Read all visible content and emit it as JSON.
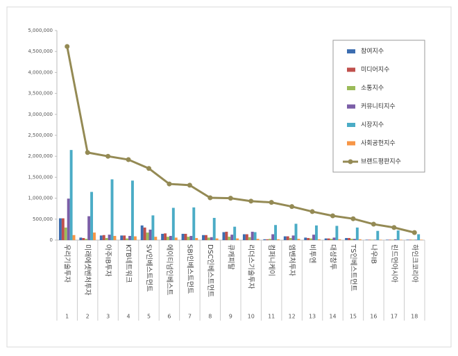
{
  "chart_data": {
    "type": "bar",
    "categories": [
      "우리기술투자",
      "미래에셋벤처투자",
      "아주IB투자",
      "KTB네트워크",
      "SV인베스트먼트",
      "에이티넘인베스트",
      "SBI인베스트먼트",
      "DSC인베스트먼트",
      "큐캐피탈",
      "리더스기술투자",
      "컴퍼니케이",
      "엠벤처투자",
      "비투엔",
      "대성창투",
      "TS인베스트먼트",
      "나우IB",
      "린드먼아시아",
      "하인크코리아"
    ],
    "category_numbers": [
      1,
      2,
      3,
      4,
      5,
      6,
      7,
      8,
      9,
      10,
      11,
      12,
      13,
      14,
      15,
      16,
      17,
      18
    ],
    "series": [
      {
        "name": "참여지수",
        "color": "#3c6db0",
        "values": [
          520000,
          60000,
          110000,
          110000,
          350000,
          150000,
          150000,
          120000,
          190000,
          140000,
          20000,
          90000,
          60000,
          40000,
          50000,
          10000,
          10000,
          10000
        ]
      },
      {
        "name": "미디어지수",
        "color": "#c0504d",
        "values": [
          520000,
          50000,
          120000,
          110000,
          300000,
          160000,
          150000,
          120000,
          200000,
          140000,
          20000,
          90000,
          50000,
          40000,
          50000,
          10000,
          10000,
          10000
        ]
      },
      {
        "name": "소통지수",
        "color": "#9bbb59",
        "values": [
          300000,
          30000,
          50000,
          40000,
          180000,
          80000,
          80000,
          60000,
          80000,
          70000,
          30000,
          50000,
          40000,
          30000,
          30000,
          10000,
          10000,
          10000
        ]
      },
      {
        "name": "커뮤니티지수",
        "color": "#7b5ea7",
        "values": [
          990000,
          570000,
          130000,
          100000,
          250000,
          100000,
          100000,
          70000,
          130000,
          200000,
          140000,
          110000,
          130000,
          60000,
          30000,
          10000,
          20000,
          10000
        ]
      },
      {
        "name": "시장지수",
        "color": "#4bacc6",
        "values": [
          2150000,
          1150000,
          1450000,
          1420000,
          590000,
          770000,
          780000,
          530000,
          320000,
          190000,
          360000,
          390000,
          350000,
          340000,
          300000,
          220000,
          230000,
          140000
        ]
      },
      {
        "name": "사회공헌지수",
        "color": "#f79646",
        "values": [
          120000,
          180000,
          100000,
          90000,
          80000,
          60000,
          50000,
          40000,
          40000,
          30000,
          20000,
          30000,
          20000,
          20000,
          20000,
          10000,
          10000,
          10000
        ]
      },
      {
        "name": "브랜드평판지수",
        "color": "#948a54",
        "type": "line",
        "values": [
          4620000,
          2090000,
          2000000,
          1920000,
          1710000,
          1340000,
          1310000,
          1010000,
          1000000,
          930000,
          900000,
          800000,
          680000,
          580000,
          510000,
          380000,
          300000,
          180000
        ]
      }
    ],
    "ylim": [
      0,
      5000000
    ],
    "yticks": [
      {
        "value": 0,
        "label": "0"
      },
      {
        "value": 500000,
        "label": "500,000"
      },
      {
        "value": 1000000,
        "label": "1,000,000"
      },
      {
        "value": 1500000,
        "label": "1,500,000"
      },
      {
        "value": 2000000,
        "label": "2,000,000"
      },
      {
        "value": 2500000,
        "label": "2,500,000"
      },
      {
        "value": 3000000,
        "label": "3,000,000"
      },
      {
        "value": 3500000,
        "label": "3,500,000"
      },
      {
        "value": 4000000,
        "label": "4,000,000"
      },
      {
        "value": 4500000,
        "label": "4,500,000"
      },
      {
        "value": 5000000,
        "label": "5,000,000"
      }
    ],
    "legend": "upper right"
  }
}
